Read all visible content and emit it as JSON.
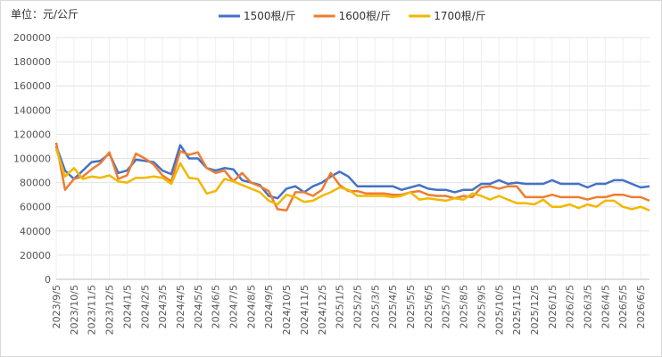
{
  "chart_data": {
    "type": "line",
    "title": "单位：元/公斤",
    "categories": [
      "2023/9/5",
      null,
      "2023/10/5",
      null,
      "2023/11/5",
      null,
      "2023/12/5",
      null,
      "2024/1/5",
      null,
      "2024/2/5",
      null,
      "2024/3/5",
      null,
      "2024/4/5",
      null,
      "2024/5/5",
      null,
      "2024/6/5",
      null,
      "2024/7/5",
      null,
      "2024/8/5",
      null,
      "2024/9/5",
      null,
      "2024/10/5",
      null,
      "2024/11/5",
      null,
      "2024/12/5",
      null,
      "2025/1/5",
      null,
      "2025/2/5",
      null,
      "2025/3/5",
      null,
      "2025/4/5",
      null,
      "2025/5/5",
      null,
      "2025/6/5",
      null,
      "2025/7/5",
      null,
      "2025/8/5",
      null,
      "2025/9/5",
      null,
      "2025/10/5",
      null,
      "2025/11/5",
      null,
      "2025/12/5",
      null,
      "2026/1/5",
      null,
      "2026/2/5",
      null,
      "2026/3/5",
      null,
      "2026/4/5",
      null,
      "2026/5/5",
      null,
      "2026/6/5",
      null
    ],
    "series": [
      {
        "name": "1500根/斤",
        "color": "#4472c4",
        "values": [
          110000,
          90000,
          83000,
          90000,
          97000,
          98000,
          104000,
          88000,
          90000,
          99000,
          98000,
          97000,
          90000,
          87000,
          111000,
          100000,
          100000,
          92000,
          90000,
          92000,
          91000,
          82000,
          80000,
          78000,
          69000,
          67000,
          75000,
          77000,
          72000,
          77000,
          80000,
          85000,
          89000,
          85000,
          77000,
          77000,
          77000,
          77000,
          77000,
          74000,
          76000,
          78000,
          75000,
          74000,
          74000,
          72000,
          74000,
          74000,
          79000,
          79000,
          82000,
          79000,
          80000,
          79000,
          79000,
          79000,
          82000,
          79000,
          79000,
          79000,
          76000,
          79000,
          79000,
          82000,
          82000,
          79000,
          76000,
          77000
        ]
      },
      {
        "name": "1600根/斤",
        "color": "#ed7d31",
        "values": [
          113000,
          74000,
          83000,
          85000,
          91000,
          96000,
          105000,
          83000,
          86000,
          104000,
          100000,
          95000,
          86000,
          81000,
          106000,
          103000,
          105000,
          92000,
          88000,
          90000,
          81000,
          88000,
          80000,
          77000,
          73000,
          58000,
          57000,
          72000,
          72000,
          69000,
          74000,
          88000,
          78000,
          73000,
          73000,
          71000,
          71000,
          71000,
          70000,
          70000,
          72000,
          73000,
          70000,
          69000,
          69000,
          67000,
          69000,
          68000,
          76000,
          77000,
          75000,
          77000,
          77000,
          68000,
          68000,
          68000,
          70000,
          68000,
          68000,
          68000,
          66000,
          68000,
          68000,
          70000,
          70000,
          68000,
          68000,
          65000
        ]
      },
      {
        "name": "1700根/斤",
        "color": "#f2b800",
        "values": [
          108000,
          85000,
          92000,
          83000,
          85000,
          84000,
          86000,
          81000,
          80000,
          84000,
          84000,
          85000,
          84000,
          79000,
          96000,
          84000,
          83000,
          71000,
          73000,
          83000,
          81000,
          78000,
          75000,
          72000,
          65000,
          62000,
          70000,
          68000,
          64000,
          65000,
          69000,
          72000,
          76000,
          74000,
          69000,
          69000,
          69000,
          69000,
          68000,
          69000,
          72000,
          66000,
          67000,
          66000,
          65000,
          67000,
          66000,
          71000,
          69000,
          66000,
          69000,
          66000,
          63000,
          63000,
          62000,
          66000,
          60000,
          60000,
          62000,
          59000,
          62000,
          60000,
          65000,
          65000,
          60000,
          58000,
          60000,
          57000
        ]
      }
    ],
    "ylim": [
      0,
      200000
    ],
    "yticks": [
      0,
      20000,
      40000,
      60000,
      80000,
      100000,
      120000,
      140000,
      160000,
      180000,
      200000
    ],
    "grid": true
  }
}
